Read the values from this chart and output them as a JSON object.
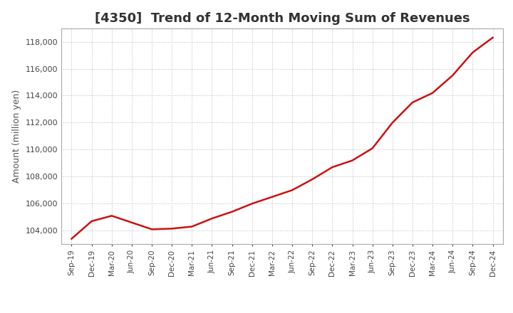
{
  "title": "[4350]  Trend of 12-Month Moving Sum of Revenues",
  "ylabel": "Amount (million yen)",
  "line_color": "#cc1111",
  "line_width": 1.8,
  "background_color": "#ffffff",
  "plot_bg_color": "#ffffff",
  "grid_color": "#bbbbbb",
  "ylim": [
    103000,
    119000
  ],
  "yticks": [
    104000,
    106000,
    108000,
    110000,
    112000,
    114000,
    116000,
    118000
  ],
  "values": [
    103400,
    104700,
    105100,
    104600,
    104100,
    104150,
    104300,
    104900,
    105400,
    106000,
    106500,
    107000,
    107800,
    108700,
    109200,
    110100,
    112000,
    113500,
    114200,
    115500,
    117200,
    118300
  ],
  "xtick_labels": [
    "Sep-19",
    "Dec-19",
    "Mar-20",
    "Jun-20",
    "Sep-20",
    "Dec-20",
    "Mar-21",
    "Jun-21",
    "Sep-21",
    "Dec-21",
    "Mar-22",
    "Jun-22",
    "Sep-22",
    "Dec-22",
    "Mar-23",
    "Jun-23",
    "Sep-23",
    "Dec-23",
    "Mar-24",
    "Jun-24",
    "Sep-24",
    "Dec-24"
  ],
  "title_fontsize": 13,
  "ylabel_fontsize": 9,
  "ytick_fontsize": 8,
  "xtick_fontsize": 7.5
}
